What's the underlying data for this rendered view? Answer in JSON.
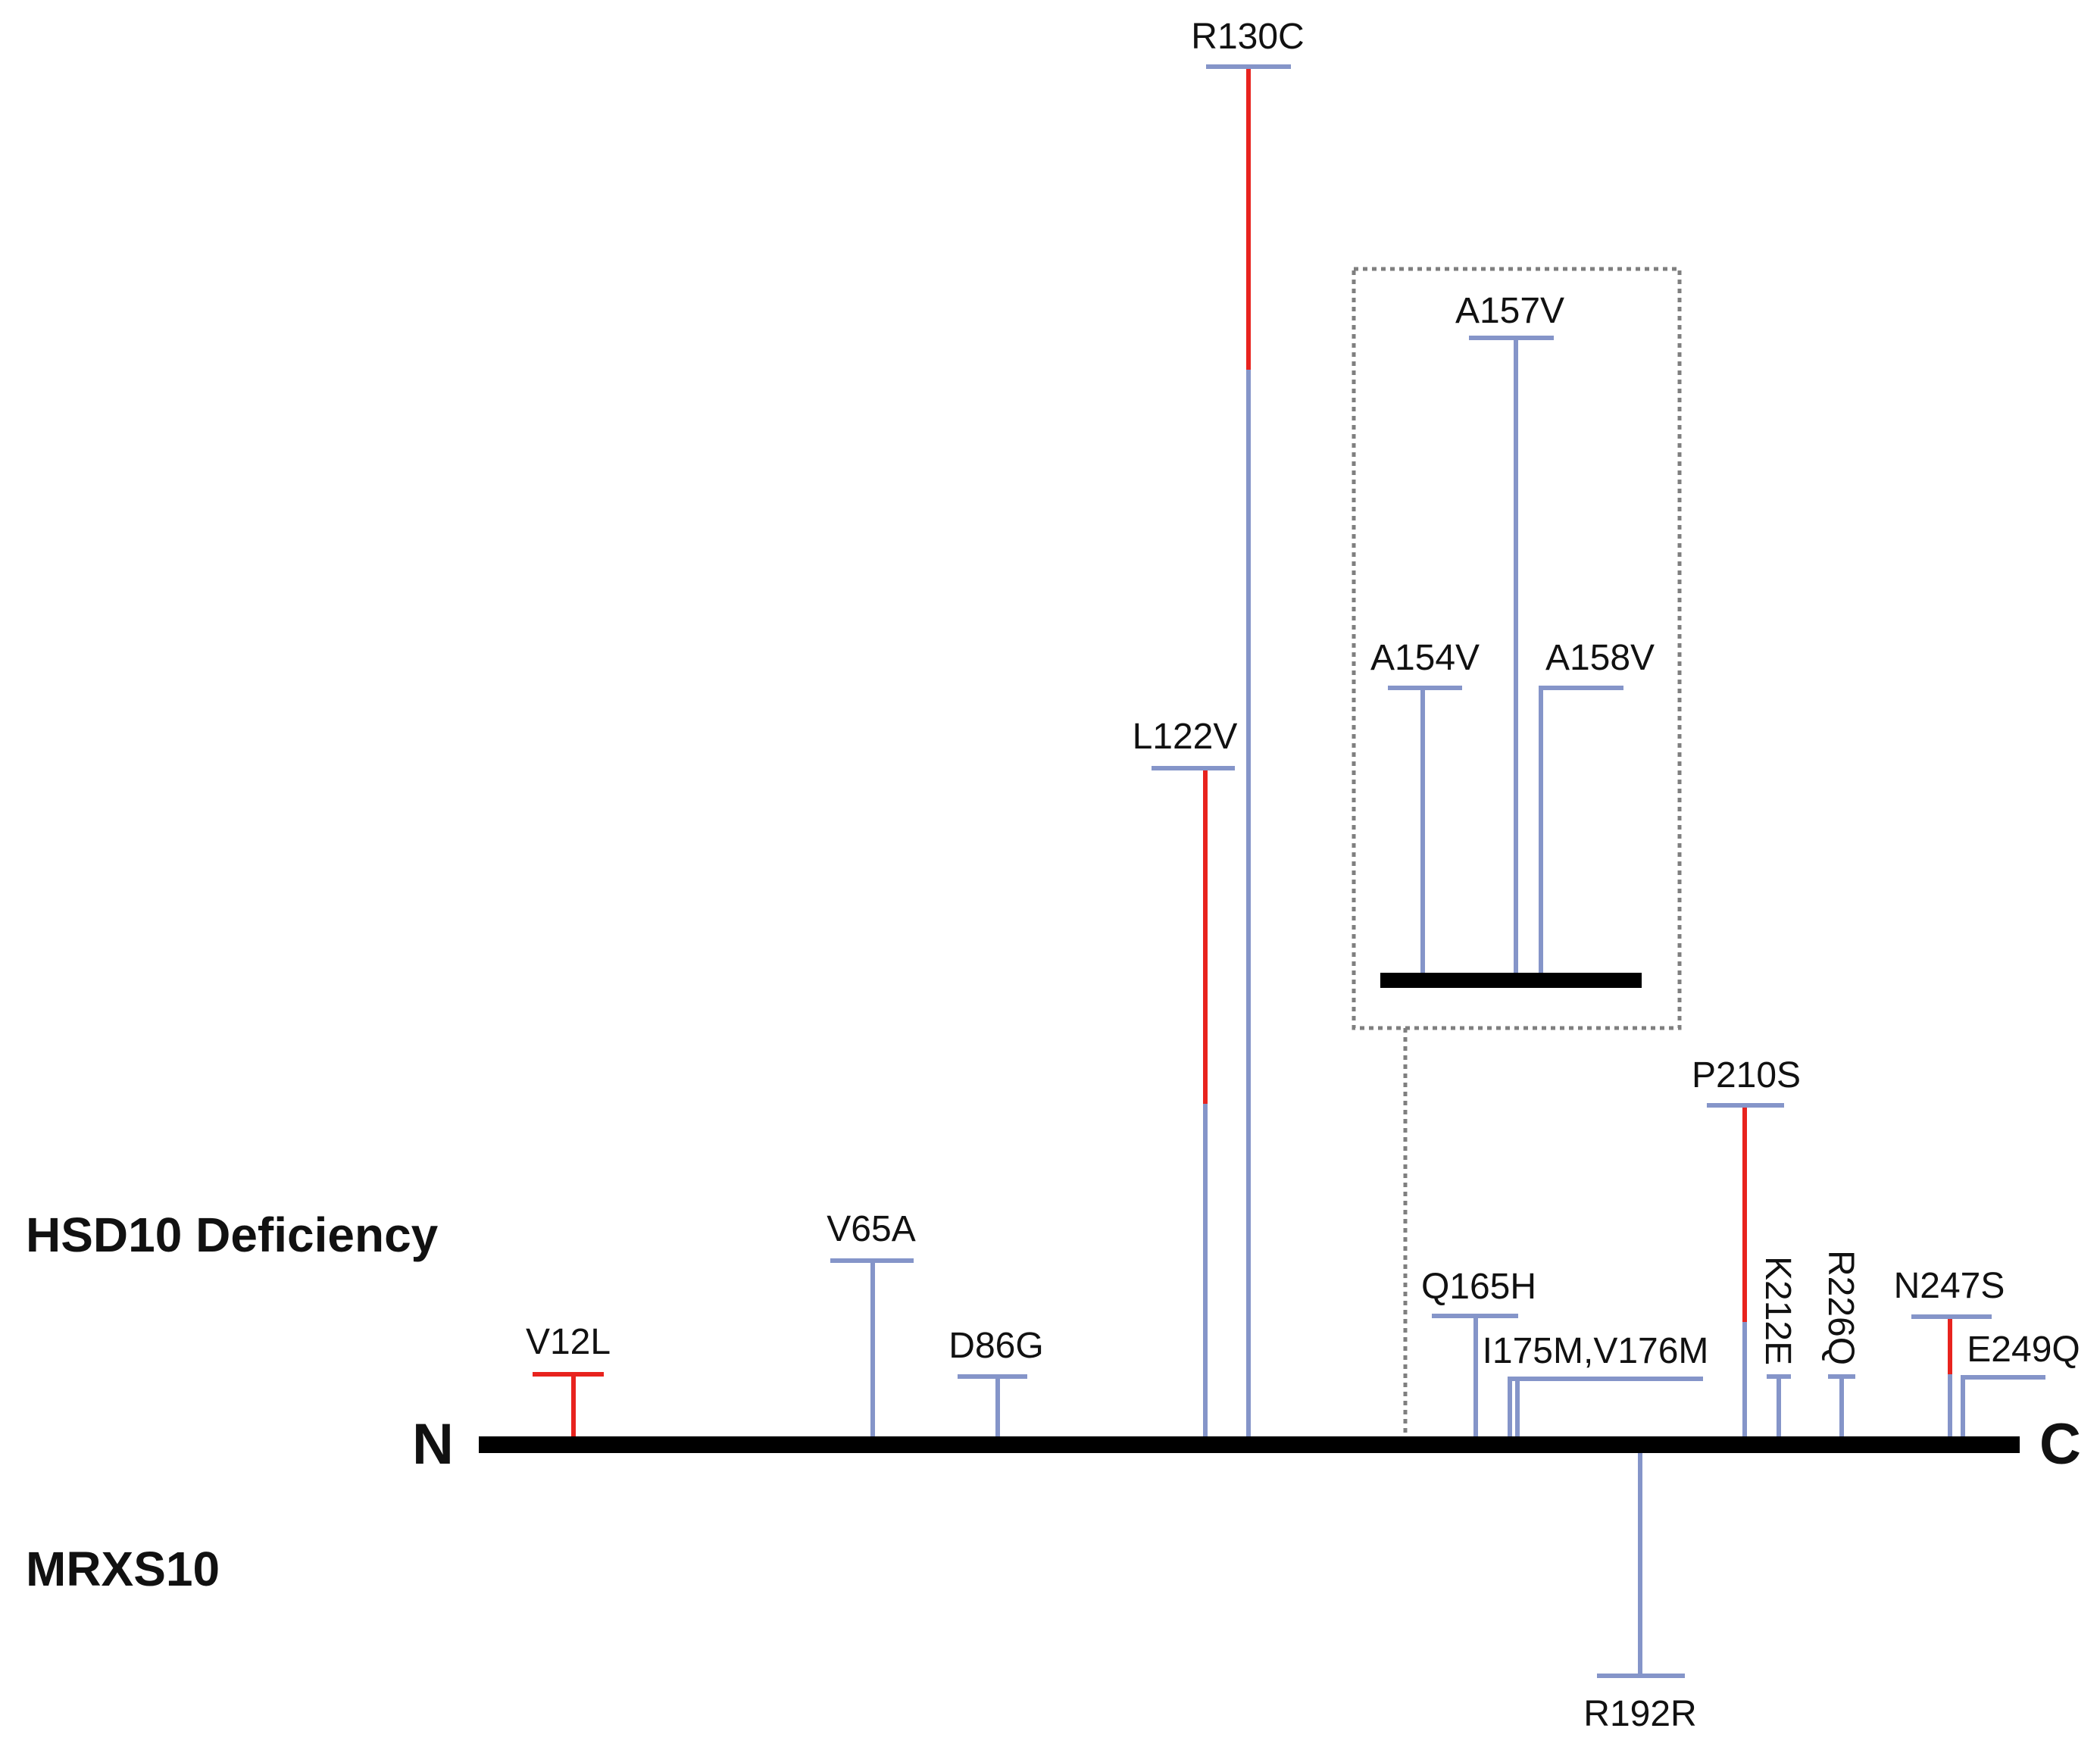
{
  "colors": {
    "backbone": "#000000",
    "stem": "#8595c9",
    "highlight": "#e8231e",
    "inset_border": "#7f7f7f",
    "text": "#111111"
  },
  "labels": {
    "n_terminus": "N",
    "c_terminus": "C",
    "upper_group": "HSD10 Deficiency",
    "lower_group": "MRXS10"
  },
  "mutations": [
    {
      "id": "v12l",
      "label": "V12L"
    },
    {
      "id": "v65a",
      "label": "V65A"
    },
    {
      "id": "d86g",
      "label": "D86G"
    },
    {
      "id": "l122v",
      "label": "L122V"
    },
    {
      "id": "r130c",
      "label": "R130C"
    },
    {
      "id": "q165h",
      "label": "Q165H"
    },
    {
      "id": "i175m-v176m",
      "label": "I175M,V176M"
    },
    {
      "id": "r192r",
      "label": "R192R"
    },
    {
      "id": "p210s",
      "label": "P210S"
    },
    {
      "id": "k212e",
      "label": "K212E"
    },
    {
      "id": "r226q",
      "label": "R226Q"
    },
    {
      "id": "n247s",
      "label": "N247S"
    },
    {
      "id": "e249q",
      "label": "E249Q"
    }
  ],
  "inset_mutations": [
    {
      "id": "a154v",
      "label": "A154V"
    },
    {
      "id": "a157v",
      "label": "A157V"
    },
    {
      "id": "a158v",
      "label": "A158V"
    }
  ]
}
